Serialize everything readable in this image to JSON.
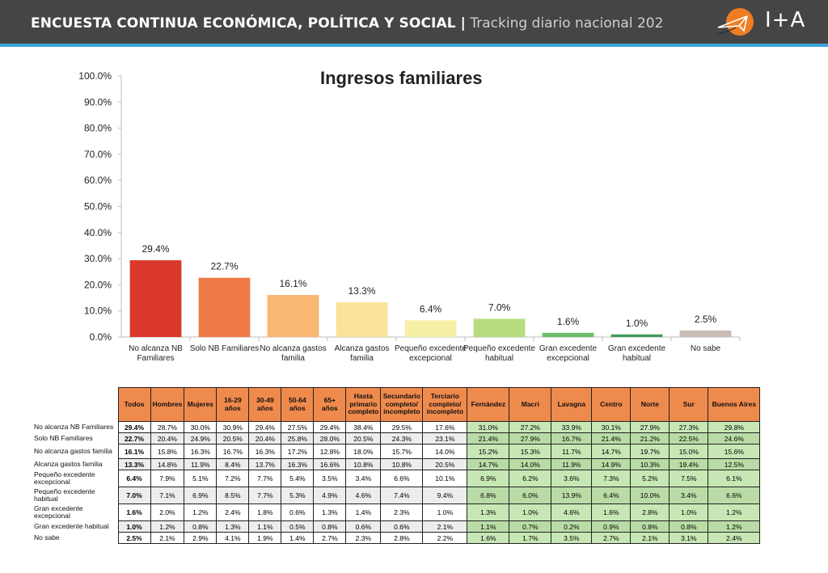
{
  "header": {
    "title_bold": "ENCUESTA CONTINUA ECONÓMICA, POLÍTICA Y SOCIAL |",
    "title_light": " Tracking diario nacional 202",
    "logo_text": "I+A"
  },
  "colors": {
    "header_bg": "#454545",
    "accent": "#3aa6dc",
    "table_header": "#ef8a4d",
    "table_green": "#c7e7b5"
  },
  "chart_data": {
    "type": "bar",
    "title": "Ingresos familiares",
    "xlabel": "",
    "ylabel": "",
    "ylim": [
      0,
      100
    ],
    "yticks": [
      "0.0%",
      "10.0%",
      "20.0%",
      "30.0%",
      "40.0%",
      "50.0%",
      "60.0%",
      "70.0%",
      "80.0%",
      "90.0%",
      "100.0%"
    ],
    "grid": false,
    "categories": [
      [
        "No alcanza NB",
        "Familiares"
      ],
      [
        "Solo NB Familiares"
      ],
      [
        "No alcanza gastos",
        "familia"
      ],
      [
        "Alcanza gastos",
        "familia"
      ],
      [
        "Pequeño excedente",
        "excepcional"
      ],
      [
        "Pequeño excedente",
        "habitual"
      ],
      [
        "Gran excedente",
        "excepcional"
      ],
      [
        "Gran excedente",
        "habitual"
      ],
      [
        "No sabe"
      ]
    ],
    "values": [
      29.4,
      22.7,
      16.1,
      13.3,
      6.4,
      7.0,
      1.6,
      1.0,
      2.5
    ],
    "labels": [
      "29.4%",
      "22.7%",
      "16.1%",
      "13.3%",
      "6.4%",
      "7.0%",
      "1.6%",
      "1.0%",
      "2.5%"
    ],
    "bar_colors": [
      "#d9382a",
      "#f07b47",
      "#f9b872",
      "#fbe39a",
      "#f5f0a6",
      "#b5dd80",
      "#6fbd6a",
      "#3f9a56",
      "#c9bcb6"
    ]
  },
  "table": {
    "headers": [
      "Todos",
      "Hombres",
      "Mujeres",
      "16-29 años",
      "30-49 años",
      "50-64 años",
      "65+ años",
      "Hasta primario completo",
      "Secundario completo/ incompleto",
      "Terciario completo/ incompleto",
      "Fernández",
      "Macri",
      "Lavagna",
      "Centro",
      "Norte",
      "Sur",
      "Buenos Aires"
    ],
    "rows": [
      {
        "label": "No alcanza NB Familiares",
        "values": [
          "29.4%",
          "28.7%",
          "30.0%",
          "30.9%",
          "29.4%",
          "27.5%",
          "29.4%",
          "38.4%",
          "29.5%",
          "17.6%",
          "31.0%",
          "27.2%",
          "33.9%",
          "30.1%",
          "27.9%",
          "27.3%",
          "29.8%"
        ]
      },
      {
        "label": "Solo NB Familiares",
        "values": [
          "22.7%",
          "20.4%",
          "24.9%",
          "20.5%",
          "20.4%",
          "25.8%",
          "28.0%",
          "20.5%",
          "24.3%",
          "23.1%",
          "21.4%",
          "27.9%",
          "16.7%",
          "21.4%",
          "21.2%",
          "22.5%",
          "24.6%"
        ]
      },
      {
        "label": "No alcanza gastos familia",
        "values": [
          "16.1%",
          "15.8%",
          "16.3%",
          "16.7%",
          "16.3%",
          "17.2%",
          "12.8%",
          "18.0%",
          "15.7%",
          "14.0%",
          "15.2%",
          "15.3%",
          "11.7%",
          "14.7%",
          "19.7%",
          "15.0%",
          "15.6%"
        ]
      },
      {
        "label": "Alcanza gastos familia",
        "values": [
          "13.3%",
          "14.8%",
          "11.9%",
          "8.4%",
          "13.7%",
          "16.3%",
          "16.6%",
          "10.8%",
          "10.8%",
          "20.5%",
          "14.7%",
          "14.0%",
          "11.9%",
          "14.9%",
          "10.3%",
          "19.4%",
          "12.5%"
        ]
      },
      {
        "label": "Pequeño excedente excepcional",
        "values": [
          "6.4%",
          "7.9%",
          "5.1%",
          "7.2%",
          "7.7%",
          "5.4%",
          "3.5%",
          "3.4%",
          "6.6%",
          "10.1%",
          "6.9%",
          "6.2%",
          "3.6%",
          "7.3%",
          "5.2%",
          "7.5%",
          "6.1%"
        ]
      },
      {
        "label": "Pequeño excedente habitual",
        "values": [
          "7.0%",
          "7.1%",
          "6.9%",
          "8.5%",
          "7.7%",
          "5.3%",
          "4.9%",
          "4.6%",
          "7.4%",
          "9.4%",
          "6.8%",
          "6.0%",
          "13.9%",
          "6.4%",
          "10.0%",
          "3.4%",
          "6.6%"
        ]
      },
      {
        "label": "Gran excedente excepcional",
        "values": [
          "1.6%",
          "2.0%",
          "1.2%",
          "2.4%",
          "1.8%",
          "0.6%",
          "1.3%",
          "1.4%",
          "2.3%",
          "1.0%",
          "1.3%",
          "1.0%",
          "4.6%",
          "1.6%",
          "2.8%",
          "1.0%",
          "1.2%"
        ]
      },
      {
        "label": "Gran excedente habitual",
        "values": [
          "1.0%",
          "1.2%",
          "0.8%",
          "1.3%",
          "1.1%",
          "0.5%",
          "0.8%",
          "0.6%",
          "0.6%",
          "2.1%",
          "1.1%",
          "0.7%",
          "0.2%",
          "0.9%",
          "0.8%",
          "0.8%",
          "1.2%"
        ]
      },
      {
        "label": "No sabe",
        "values": [
          "2.5%",
          "2.1%",
          "2.9%",
          "4.1%",
          "1.9%",
          "1.4%",
          "2.7%",
          "2.3%",
          "2.8%",
          "2.2%",
          "1.6%",
          "1.7%",
          "3.5%",
          "2.7%",
          "2.1%",
          "3.1%",
          "2.4%"
        ]
      }
    ]
  }
}
